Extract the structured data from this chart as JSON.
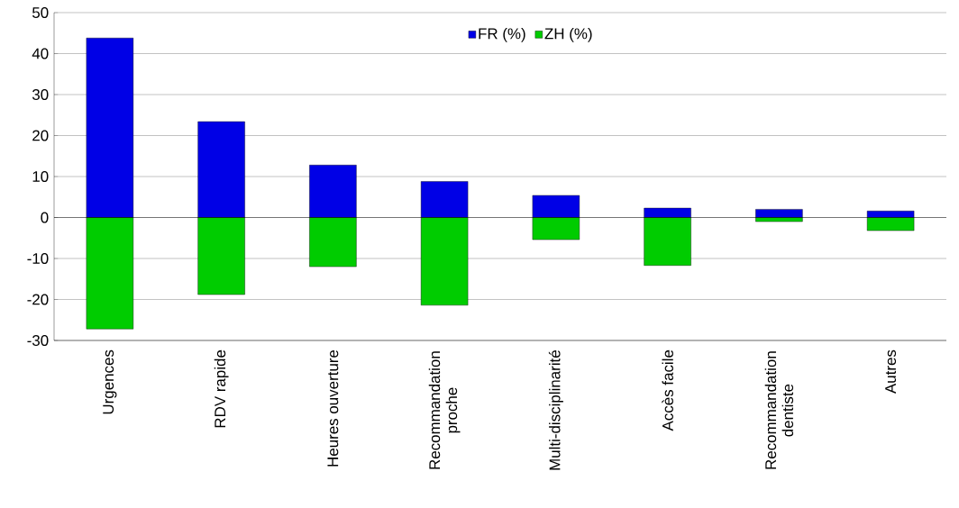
{
  "chart_data": {
    "type": "bar",
    "stacked": true,
    "categories": [
      "Urgences",
      "RDV rapide",
      "Heures ouverture",
      "Recommandation proche",
      "Multi-disciplinarité",
      "Accès facile",
      "Recommandation dentiste",
      "Autres"
    ],
    "series": [
      {
        "name": "FR (%)",
        "color": "#0000e6",
        "values": [
          43.8,
          23.4,
          12.8,
          8.8,
          5.4,
          2.3,
          2.0,
          1.6
        ]
      },
      {
        "name": "ZH (%)",
        "color": "#00cc00",
        "values": [
          -27.2,
          -18.8,
          -12.0,
          -21.4,
          -5.4,
          -11.7,
          -1.0,
          -3.2
        ]
      }
    ],
    "ylim": [
      -30,
      50
    ],
    "yticks": [
      -30,
      -20,
      -10,
      0,
      10,
      20,
      30,
      40,
      50
    ],
    "grid": "y",
    "legend": "top"
  }
}
